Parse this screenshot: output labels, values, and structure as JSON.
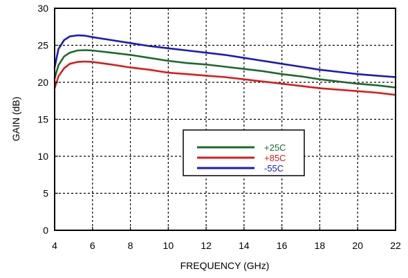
{
  "chart_data": {
    "type": "line",
    "title": "",
    "xlabel": "FREQUENCY (GHz)",
    "ylabel": "GAIN (dB)",
    "xlim": [
      4,
      22
    ],
    "ylim": [
      0,
      30
    ],
    "xticks": [
      4,
      6,
      8,
      10,
      12,
      14,
      16,
      18,
      20,
      22
    ],
    "yticks": [
      0,
      5,
      10,
      15,
      20,
      25,
      30
    ],
    "grid": true,
    "grid_style": "dotted",
    "legend_position": "center-right",
    "series": [
      {
        "name": "+25C",
        "color": "#1a6b2a",
        "x": [
          4,
          4.2,
          4.5,
          4.8,
          5.2,
          5.6,
          6,
          7,
          8,
          9,
          10,
          11,
          12,
          13,
          14,
          15,
          16,
          17,
          18,
          19,
          20,
          21,
          22
        ],
        "y": [
          20.5,
          22.3,
          23.5,
          24.0,
          24.3,
          24.35,
          24.3,
          24.0,
          23.7,
          23.3,
          22.9,
          22.6,
          22.4,
          22.1,
          21.8,
          21.5,
          21.1,
          20.8,
          20.4,
          20.1,
          19.8,
          19.6,
          19.3
        ]
      },
      {
        "name": "+85C",
        "color": "#d91c1c",
        "x": [
          4,
          4.2,
          4.5,
          4.8,
          5.2,
          5.6,
          6,
          7,
          8,
          9,
          10,
          11,
          12,
          13,
          14,
          15,
          16,
          17,
          18,
          19,
          20,
          21,
          22
        ],
        "y": [
          19.2,
          20.8,
          21.9,
          22.5,
          22.75,
          22.8,
          22.75,
          22.4,
          22.0,
          21.7,
          21.3,
          21.1,
          20.9,
          20.7,
          20.4,
          20.1,
          19.8,
          19.5,
          19.2,
          19.0,
          18.8,
          18.6,
          18.3
        ]
      },
      {
        "name": "-55C",
        "color": "#1a1ab8",
        "x": [
          4,
          4.2,
          4.5,
          4.8,
          5.2,
          5.6,
          6,
          7,
          8,
          9,
          10,
          11,
          12,
          13,
          14,
          15,
          16,
          17,
          18,
          19,
          20,
          21,
          22
        ],
        "y": [
          22.0,
          24.5,
          25.7,
          26.2,
          26.35,
          26.3,
          26.1,
          25.7,
          25.3,
          24.9,
          24.6,
          24.3,
          24.0,
          23.7,
          23.3,
          22.9,
          22.5,
          22.1,
          21.7,
          21.4,
          21.1,
          20.9,
          20.7
        ]
      }
    ]
  }
}
